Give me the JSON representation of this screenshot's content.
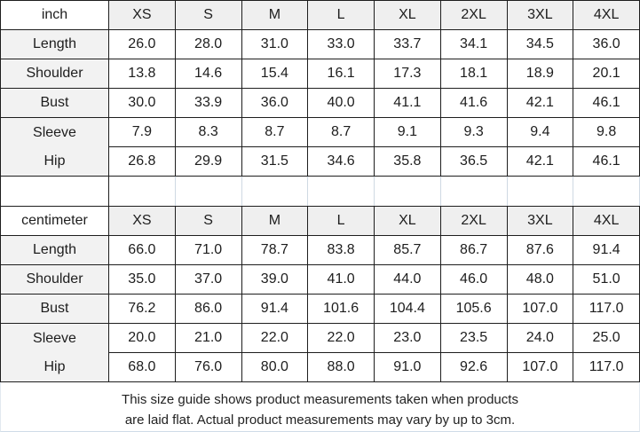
{
  "chart_data": [
    {
      "type": "table",
      "unit_label": "inch",
      "sizes": [
        "XS",
        "S",
        "M",
        "L",
        "XL",
        "2XL",
        "3XL",
        "4XL"
      ],
      "rows": [
        {
          "label": "Length",
          "values": [
            "26.0",
            "28.0",
            "31.0",
            "33.0",
            "33.7",
            "34.1",
            "34.5",
            "36.0"
          ]
        },
        {
          "label": "Shoulder",
          "values": [
            "13.8",
            "14.6",
            "15.4",
            "16.1",
            "17.3",
            "18.1",
            "18.9",
            "20.1"
          ]
        },
        {
          "label": "Bust",
          "values": [
            "30.0",
            "33.9",
            "36.0",
            "40.0",
            "41.1",
            "41.6",
            "42.1",
            "46.1"
          ]
        },
        {
          "label": "Sleeve",
          "values": [
            "7.9",
            "8.3",
            "8.7",
            "8.7",
            "9.1",
            "9.3",
            "9.4",
            "9.8"
          ]
        },
        {
          "label": "Hip",
          "values": [
            "26.8",
            "29.9",
            "31.5",
            "34.6",
            "35.8",
            "36.5",
            "42.1",
            "46.1"
          ]
        }
      ]
    },
    {
      "type": "table",
      "unit_label": "centimeter",
      "sizes": [
        "XS",
        "S",
        "M",
        "L",
        "XL",
        "2XL",
        "3XL",
        "4XL"
      ],
      "rows": [
        {
          "label": "Length",
          "values": [
            "66.0",
            "71.0",
            "78.7",
            "83.8",
            "85.7",
            "86.7",
            "87.6",
            "91.4"
          ]
        },
        {
          "label": "Shoulder",
          "values": [
            "35.0",
            "37.0",
            "39.0",
            "41.0",
            "44.0",
            "46.0",
            "48.0",
            "51.0"
          ]
        },
        {
          "label": "Bust",
          "values": [
            "76.2",
            "86.0",
            "91.4",
            "101.6",
            "104.4",
            "105.6",
            "107.0",
            "117.0"
          ]
        },
        {
          "label": "Sleeve",
          "values": [
            "20.0",
            "21.0",
            "22.0",
            "22.0",
            "23.0",
            "23.5",
            "24.0",
            "25.0"
          ]
        },
        {
          "label": "Hip",
          "values": [
            "68.0",
            "76.0",
            "80.0",
            "88.0",
            "91.0",
            "92.6",
            "107.0",
            "117.0"
          ]
        }
      ]
    }
  ],
  "footer": {
    "line1": "This size guide shows product measurements taken when products",
    "line2": "are laid flat. Actual product measurements may vary by up to 3cm."
  },
  "colors": {
    "border": "#1e1e1e",
    "light_grid": "#cfd9e3",
    "size_header_bg": "#efefef",
    "label_column_bg": "#f2f2f2",
    "text": "#1d1d1d"
  }
}
